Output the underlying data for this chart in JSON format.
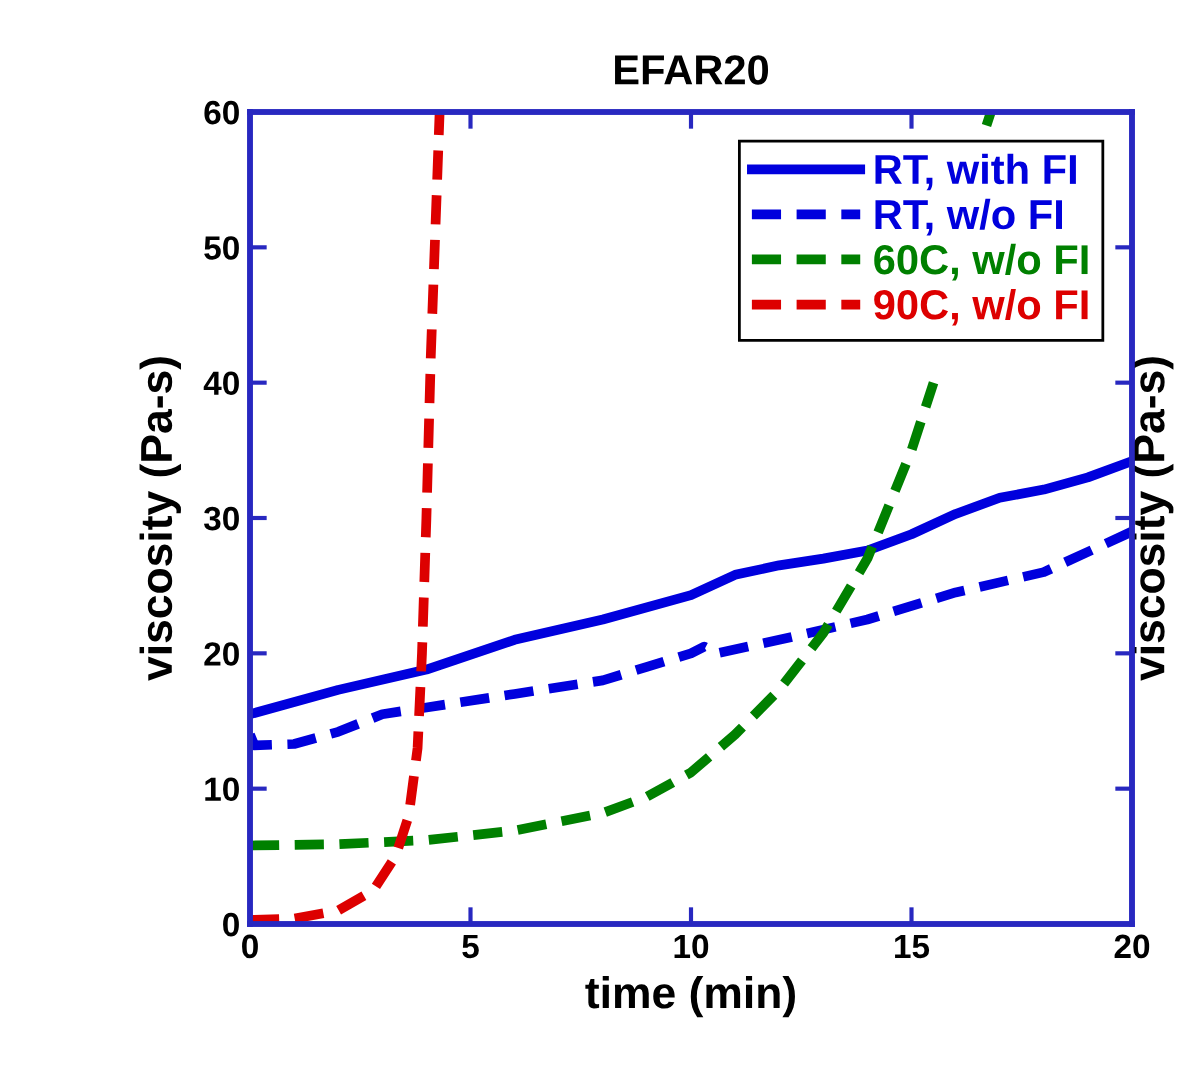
{
  "chart_data": {
    "type": "line",
    "title": "EFAR20",
    "xlabel": "time (min)",
    "ylabel": "viscosity (Pa-s)",
    "y2label": "viscosity (Pa-s)",
    "xlim": [
      0,
      20
    ],
    "xticks": [
      0,
      5,
      10,
      15,
      20
    ],
    "ylim": [
      0,
      60
    ],
    "yticks": [
      0,
      10,
      20,
      30,
      40,
      50,
      60
    ],
    "legend": "top right",
    "grid": false,
    "series": [
      {
        "name": "RT, with FI",
        "color": "#0000dd",
        "line_style": "solid",
        "x": [
          0,
          2,
          4,
          6,
          8,
          10,
          11,
          12,
          13,
          14,
          15,
          16,
          17,
          18,
          19,
          20
        ],
        "values": [
          15.5,
          17.3,
          18.8,
          21,
          22.5,
          24.3,
          25.8,
          26.5,
          27,
          27.6,
          28.8,
          30.3,
          31.5,
          32.1,
          33,
          34.2
        ]
      },
      {
        "name": "RT, w/o FI",
        "color": "#0000dd",
        "line_style": "dashed",
        "x": [
          0,
          0.1,
          1,
          2,
          3,
          4,
          6,
          8,
          9,
          10,
          10.3,
          10.6,
          12,
          14,
          16,
          18,
          20
        ],
        "values": [
          14,
          13.2,
          13.3,
          14.2,
          15.5,
          16,
          17,
          18,
          19,
          20,
          20.5,
          20,
          21,
          22.5,
          24.5,
          26,
          29
        ]
      },
      {
        "name": "60C, w/o FI",
        "color": "#008000",
        "line_style": "dashed",
        "x": [
          0,
          2,
          4,
          6,
          8,
          9,
          10,
          11,
          12,
          13,
          14,
          15,
          15.5,
          16.2,
          16.7,
          16.8
        ],
        "values": [
          5.8,
          5.9,
          6.2,
          6.9,
          8.2,
          9.4,
          11.2,
          14,
          17.3,
          21.5,
          27,
          35,
          40,
          null,
          59,
          60
        ]
      },
      {
        "name": "90C, w/o FI",
        "color": "#dd0000",
        "line_style": "dashed",
        "x": [
          0,
          1,
          2,
          2.8,
          3.3,
          3.6,
          3.8,
          3.9,
          4.0,
          4.1,
          4.3
        ],
        "values": [
          0.3,
          0.4,
          1,
          2.5,
          5,
          8,
          13,
          20,
          30,
          42,
          60
        ]
      }
    ]
  }
}
